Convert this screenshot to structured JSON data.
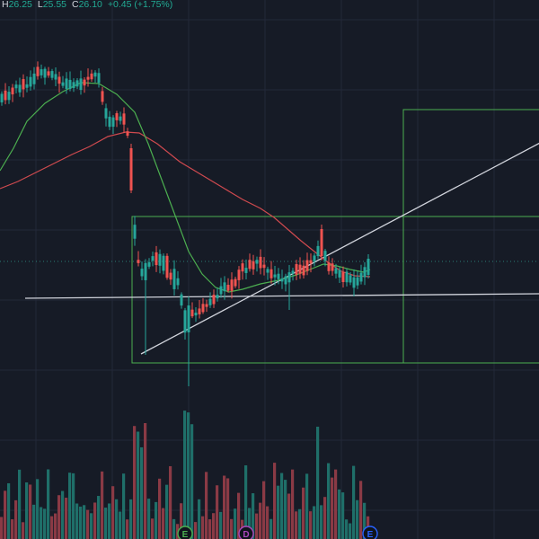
{
  "legend": {
    "high_label": "H",
    "high_value": "26.25",
    "low_label": "L",
    "low_value": "25.55",
    "close_label": "C",
    "close_value": "26.10",
    "change": "+0.45 (+1.75%)"
  },
  "colors": {
    "background": "#161b26",
    "grid": "#232838",
    "up": "#26a69a",
    "down": "#ef5350",
    "volume_up": "#1f6f69",
    "volume_down": "#8a3a45",
    "ma_fast": "#4caf50",
    "ma_slow": "#d04a4f",
    "trendline": "#d1d4dc",
    "rectangle": "#4caf50",
    "price_line": "#2a7e74"
  },
  "markers": [
    {
      "letter": "E",
      "color": "#4caf50",
      "kind": "earnings"
    },
    {
      "letter": "D",
      "color": "#ab47bc",
      "kind": "dividend"
    },
    {
      "letter": "E",
      "color": "#2962ff",
      "kind": "earnings-upcoming"
    }
  ]
}
